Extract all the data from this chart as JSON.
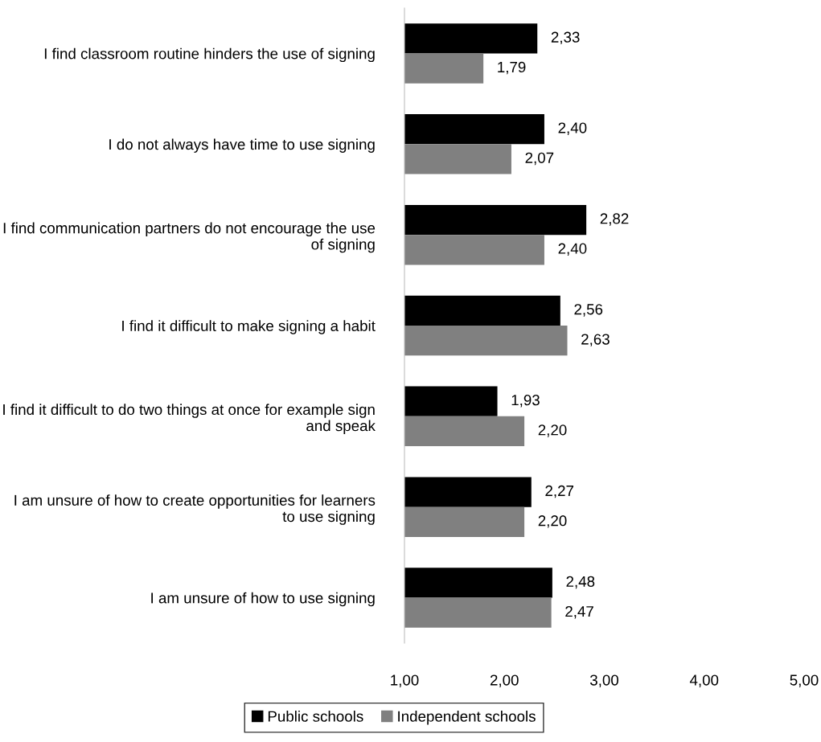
{
  "chart_data": {
    "type": "bar",
    "orientation": "horizontal",
    "categories": [
      "I find classroom routine hinders the use of signing",
      "I do not always have time to use signing",
      "I find communication partners do not encourage the use of signing",
      "I find it difficult to make signing a habit",
      "I find it difficult to do two things at once for example sign and speak",
      "I am unsure of how to create opportunities for learners to use signing",
      "I am unsure of how to use signing"
    ],
    "series": [
      {
        "name": "Public schools",
        "color": "#000000",
        "values": [
          2.33,
          2.4,
          2.82,
          2.56,
          1.93,
          2.27,
          2.48
        ],
        "value_labels": [
          "2,33",
          "2,40",
          "2,82",
          "2,56",
          "1,93",
          "2,27",
          "2,48"
        ]
      },
      {
        "name": "Independent schools",
        "color": "#808080",
        "values": [
          1.79,
          2.07,
          2.4,
          2.63,
          2.2,
          2.2,
          2.47
        ],
        "value_labels": [
          "1,79",
          "2,07",
          "2,40",
          "2,63",
          "2,20",
          "2,20",
          "2,47"
        ]
      }
    ],
    "xlim": [
      1,
      5
    ],
    "xticks": [
      {
        "value": 1,
        "label": "1,00"
      },
      {
        "value": 2,
        "label": "2,00"
      },
      {
        "value": 3,
        "label": "3,00"
      },
      {
        "value": 4,
        "label": "4,00"
      },
      {
        "value": 5,
        "label": "5,00"
      }
    ],
    "grid": false,
    "legend": "bottom"
  }
}
